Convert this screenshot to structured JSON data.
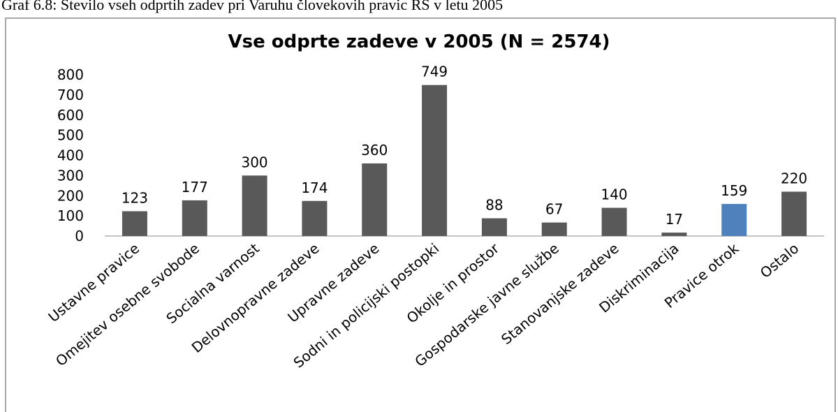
{
  "caption": "Graf 6.8: Število vseh odprtih zadev pri Varuhu človekovih pravic RS v letu 2005",
  "chart_data": {
    "type": "bar",
    "title": "Vse odprte zadeve v 2005 (N = 2574)",
    "categories": [
      "Ustavne pravice",
      "Omejitev osebne svobode",
      "Socialna varnost",
      "Delovnopravne zadeve",
      "Upravne zadeve",
      "Sodni in policijski postopki",
      "Okolje in prostor",
      "Gospodarske javne službe",
      "Stanovanjske zadeve",
      "Diskriminacija",
      "Pravice otrok",
      "Ostalo"
    ],
    "values": [
      123,
      177,
      300,
      174,
      360,
      749,
      88,
      67,
      140,
      17,
      159,
      220
    ],
    "colors": [
      "#595959",
      "#595959",
      "#595959",
      "#595959",
      "#595959",
      "#595959",
      "#595959",
      "#595959",
      "#595959",
      "#595959",
      "#4f81bd",
      "#595959"
    ],
    "ylim": [
      0,
      800
    ],
    "yticks": [
      0,
      100,
      200,
      300,
      400,
      500,
      600,
      700,
      800
    ],
    "grid": false
  }
}
